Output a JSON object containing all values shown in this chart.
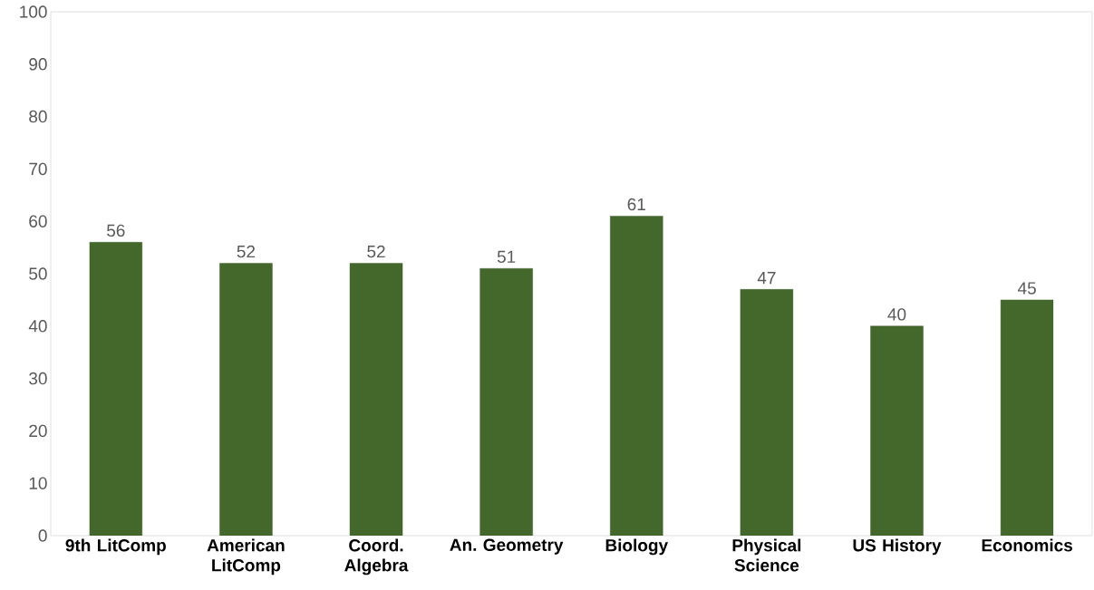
{
  "chart_data": {
    "type": "bar",
    "categories": [
      "9th LitComp",
      "American LitComp",
      "Coord. Algebra",
      "An. Geometry",
      "Biology",
      "Physical Science",
      "US History",
      "Economics"
    ],
    "values": [
      56,
      52,
      52,
      51,
      61,
      47,
      40,
      45
    ],
    "color": "#44682c",
    "ylim": [
      0,
      100
    ],
    "yticks": [
      0,
      10,
      20,
      30,
      40,
      50,
      60,
      70,
      80,
      90,
      100
    ],
    "data_labels": true
  }
}
